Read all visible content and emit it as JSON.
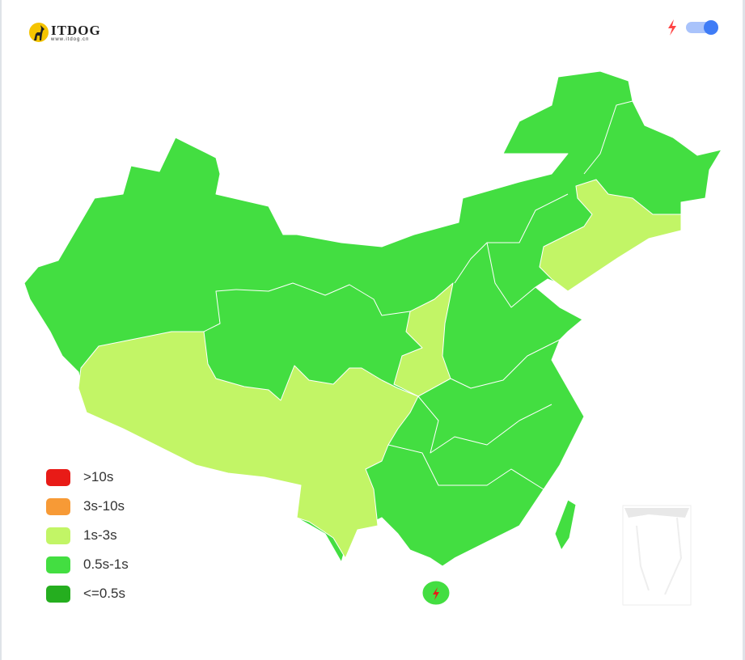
{
  "logo": {
    "title": "ITDOG",
    "subtitle": "www.itdog.cn"
  },
  "toolbar": {
    "bolt_icon": "lightning-icon",
    "toggle_on": true
  },
  "legend": [
    {
      "label": ">10s",
      "color": "#e81b17"
    },
    {
      "label": "3s-10s",
      "color": "#f79a36"
    },
    {
      "label": "1s-3s",
      "color": "#c2f566"
    },
    {
      "label": "0.5s-1s",
      "color": "#43de41"
    },
    {
      "label": "<=0.5s",
      "color": "#25ae1f"
    }
  ],
  "map": {
    "regions": [
      {
        "name": "Xizang",
        "category": "1s-3s"
      },
      {
        "name": "Sichuan",
        "category": "1s-3s"
      },
      {
        "name": "Yunnan",
        "category": "1s-3s"
      },
      {
        "name": "Shaanxi",
        "category": "1s-3s"
      },
      {
        "name": "Jilin",
        "category": "1s-3s"
      },
      {
        "name": "Liaoning",
        "category": "1s-3s"
      },
      {
        "name": "Other provinces",
        "category": "0.5s-1s"
      }
    ],
    "marker_icon": "lightning-icon"
  }
}
